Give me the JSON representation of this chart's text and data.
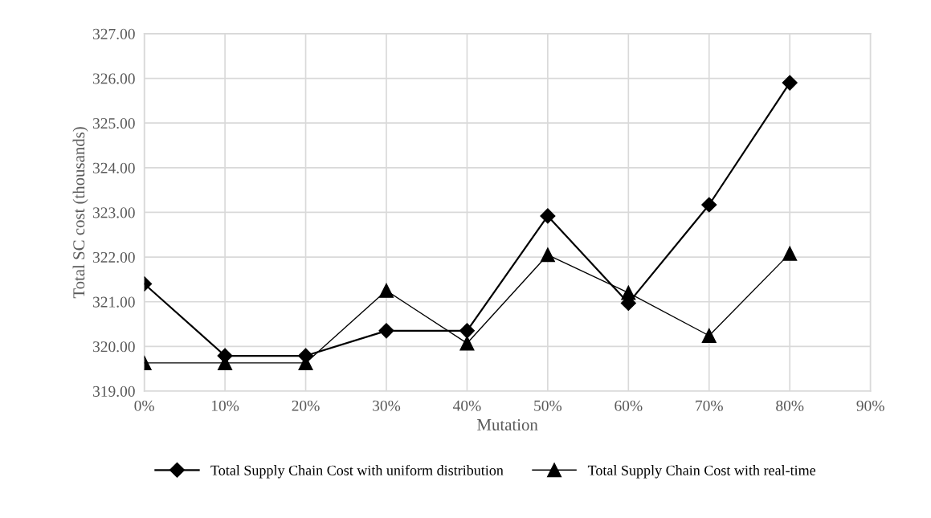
{
  "chart_data": {
    "type": "line",
    "xlabel": "Mutation",
    "ylabel": "Total SC cost (thousands)",
    "x": [
      0,
      10,
      20,
      30,
      40,
      50,
      60,
      70,
      80
    ],
    "xlim": [
      0,
      90
    ],
    "xticks": [
      {
        "value": 0,
        "label": "0%"
      },
      {
        "value": 10,
        "label": "10%"
      },
      {
        "value": 20,
        "label": "20%"
      },
      {
        "value": 30,
        "label": "30%"
      },
      {
        "value": 40,
        "label": "40%"
      },
      {
        "value": 50,
        "label": "50%"
      },
      {
        "value": 60,
        "label": "60%"
      },
      {
        "value": 70,
        "label": "70%"
      },
      {
        "value": 80,
        "label": "80%"
      },
      {
        "value": 90,
        "label": "90%"
      }
    ],
    "ylim": [
      319,
      327
    ],
    "yticks": [
      {
        "value": 319,
        "label": "319.00"
      },
      {
        "value": 320,
        "label": "320.00"
      },
      {
        "value": 321,
        "label": "321.00"
      },
      {
        "value": 322,
        "label": "322.00"
      },
      {
        "value": 323,
        "label": "323.00"
      },
      {
        "value": 324,
        "label": "324.00"
      },
      {
        "value": 325,
        "label": "325.00"
      },
      {
        "value": 326,
        "label": "326.00"
      },
      {
        "value": 327,
        "label": "327.00"
      }
    ],
    "grid": true,
    "legend": "bottom",
    "series": [
      {
        "name": "Total Supply Chain Cost with uniform distribution",
        "color": "#000000",
        "marker": "diamond",
        "values": [
          321.4,
          319.79,
          319.79,
          320.35,
          320.35,
          322.92,
          320.97,
          323.17,
          325.9
        ]
      },
      {
        "name": "Total Supply Chain Cost with real-time",
        "color": "#000000",
        "marker": "triangle",
        "values": [
          319.63,
          319.63,
          319.63,
          321.25,
          320.07,
          322.05,
          321.2,
          320.24,
          322.08
        ]
      }
    ]
  }
}
